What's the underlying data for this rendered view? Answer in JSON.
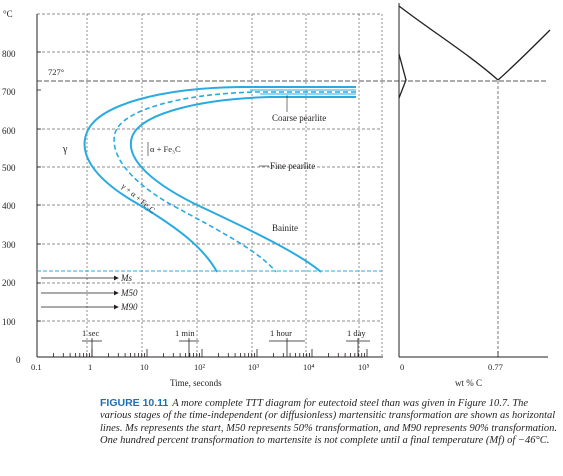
{
  "figure": {
    "label": "FIGURE 10.11",
    "caption": "A more complete TTT diagram for eutectoid steel than was given in Figure 10.7. The various stages of the time-independent (or diffusionless) martensitic transformation are shown as horizontal lines. Ms represents the start, M50 represents 50% transformation, and M90 represents 90% transformation. One hundred percent transformation to martensite is not complete until a final temperature (Mf) of −46°C."
  },
  "ttt": {
    "y_unit": "°C",
    "y_ticks": [
      "800",
      "700",
      "600",
      "500",
      "400",
      "300",
      "200",
      "100",
      "0"
    ],
    "x_ticks": [
      "0.1",
      "1",
      "10",
      "10²",
      "10³",
      "10⁴",
      "10⁵"
    ],
    "x_label": "Time, seconds",
    "eutectoid_temp": "727°",
    "time_markers": [
      "1 sec",
      "1 min",
      "1 hour",
      "1 day"
    ],
    "region_labels": {
      "gamma": "γ",
      "ferrite_cementite": "α + Fe₃C",
      "transforming": "γ + α + Fe₃C",
      "coarse": "Coarse pearlite",
      "fine": "Fine pearlite",
      "bainite": "Bainite"
    },
    "martensite_labels": {
      "ms": "Ms",
      "m50": "M50",
      "m90": "M90"
    },
    "colors": {
      "curve": "#29abe2",
      "axis": "#231f20"
    }
  },
  "phase_diagram": {
    "x_ticks": [
      "0",
      "0.77"
    ],
    "x_label": "wt % C"
  }
}
